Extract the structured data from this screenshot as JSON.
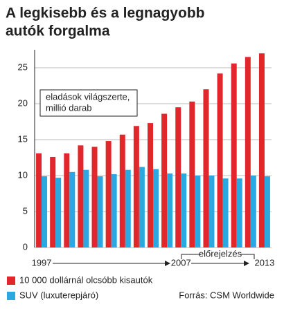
{
  "chart_data": {
    "type": "bar",
    "title": [
      "A legkisebb és a legnagyobb",
      "autók forgalma"
    ],
    "annotation": [
      "eladások világszerte,",
      "millió darab"
    ],
    "forecast_label": "előrejelzés",
    "source": "Forrás: CSM Worldwide",
    "categories": [
      "1997",
      null,
      null,
      null,
      null,
      null,
      null,
      null,
      null,
      null,
      "2007",
      null,
      null,
      null,
      null,
      null,
      "2013"
    ],
    "series": [
      {
        "name": "10 000 dollárnál olcsóbb kisautók",
        "color": "#e1262c",
        "values": [
          13.1,
          12.6,
          13.1,
          14.2,
          14.0,
          14.8,
          15.7,
          16.9,
          17.3,
          18.6,
          19.5,
          20.3,
          22.0,
          24.2,
          25.6,
          26.5,
          27.0
        ]
      },
      {
        "name": "SUV (luxuterepjáró)",
        "color": "#2aa8df",
        "values": [
          9.9,
          9.7,
          10.5,
          10.8,
          9.9,
          10.2,
          10.8,
          11.2,
          10.9,
          10.3,
          10.3,
          10.0,
          10.0,
          9.6,
          9.6,
          10.0,
          9.9
        ]
      }
    ],
    "ylim": [
      0,
      27.5
    ],
    "yticks": [
      0,
      5,
      10,
      15,
      20,
      25
    ],
    "grid": true
  }
}
